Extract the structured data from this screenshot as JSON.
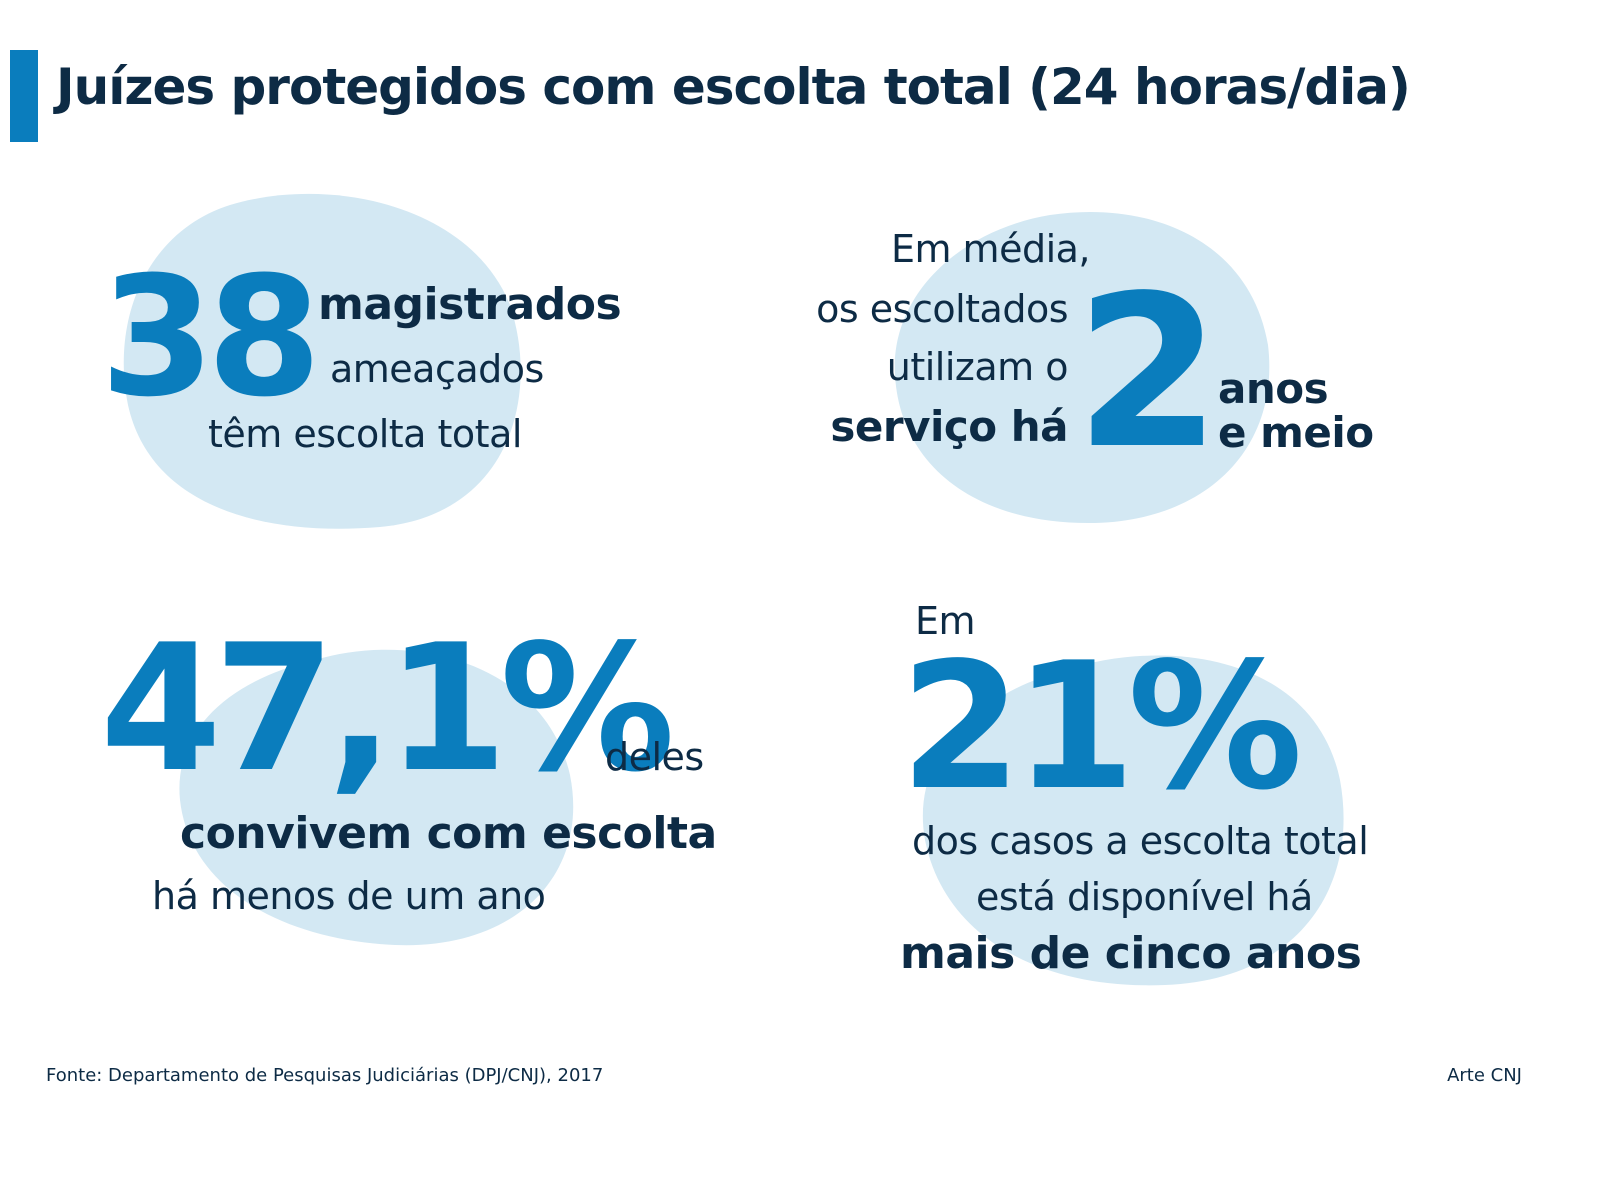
{
  "title": "Juízes protegidos com escolta total (24 horas/dia)",
  "colors": {
    "accent": "#0a7dbd",
    "text": "#0d2b45",
    "blob": "#d3e8f3"
  },
  "stats": [
    {
      "number": "38",
      "line1": "magistrados",
      "line2": "ameaçados",
      "line3": "têm escolta total"
    },
    {
      "pre1": "Em média,",
      "pre2": "os escoltados",
      "pre3": "utilizam o",
      "pre4": "serviço há",
      "number": "2",
      "post1": "anos",
      "post2": "e meio"
    },
    {
      "number": "47,1%",
      "line1": "deles",
      "line2": "convivem com escolta",
      "line3": "há menos de um ano"
    },
    {
      "pre": "Em",
      "number": "21%",
      "line1": "dos casos a escolta total",
      "line2": "está disponível há",
      "line3": "mais de cinco anos"
    }
  ],
  "footer": {
    "source": "Fonte: Departamento de Pesquisas Judiciárias (DPJ/CNJ), 2017",
    "credit": "Arte CNJ"
  }
}
